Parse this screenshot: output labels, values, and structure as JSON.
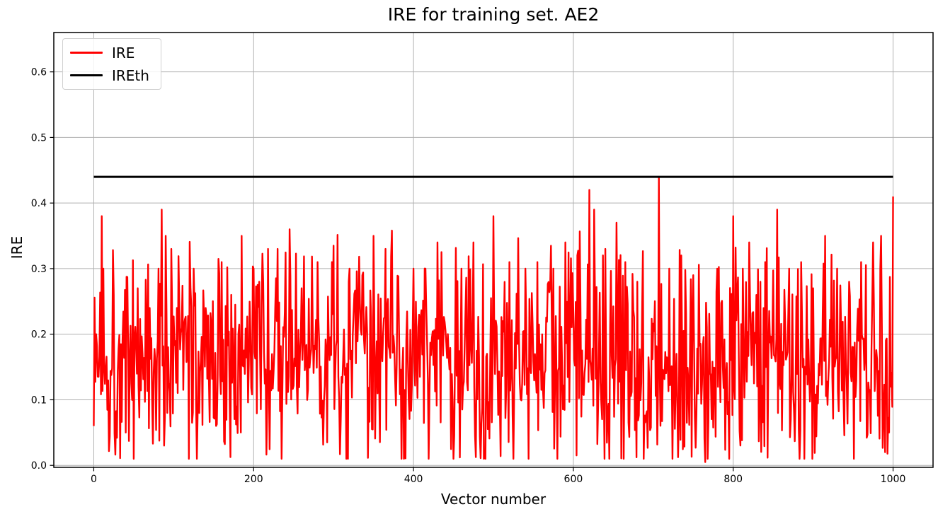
{
  "figure": {
    "background": "#ffffff"
  },
  "chart_data": {
    "type": "line",
    "title": "IRE for training set. AE2",
    "xlabel": "Vector number",
    "ylabel": "IRE",
    "xlim": [
      -50,
      1050
    ],
    "ylim": [
      -0.003,
      0.66
    ],
    "xticks": [
      0,
      200,
      400,
      600,
      800,
      1000
    ],
    "xtick_labels": [
      "0",
      "200",
      "400",
      "600",
      "800",
      "1000"
    ],
    "yticks": [
      0.0,
      0.1,
      0.2,
      0.3,
      0.4,
      0.5,
      0.6
    ],
    "ytick_labels": [
      "0.0",
      "0.1",
      "0.2",
      "0.3",
      "0.4",
      "0.5",
      "0.6"
    ],
    "grid": true,
    "grid_color": "#b0b0b0",
    "axis_color": "#000000",
    "legend": {
      "position": "upper-left",
      "entries": [
        {
          "label": "IRE",
          "color": "#ff0000"
        },
        {
          "label": "IREth",
          "color": "#000000"
        }
      ]
    },
    "series": [
      {
        "name": "IRE",
        "color": "#ff0000",
        "line_width": 2.4,
        "x_start": 0,
        "x_end": 1000,
        "n_points": 1001,
        "noise": {
          "seed": 1337,
          "center": 0.165,
          "spread": 0.2,
          "min": 0.01,
          "max": 0.385
        },
        "keypoints": [
          [
            0,
            0.06
          ],
          [
            3,
            0.2
          ],
          [
            10,
            0.38
          ],
          [
            12,
            0.3
          ],
          [
            25,
            0.26
          ],
          [
            40,
            0.05
          ],
          [
            55,
            0.27
          ],
          [
            70,
            0.24
          ],
          [
            85,
            0.39
          ],
          [
            90,
            0.35
          ],
          [
            97,
            0.33
          ],
          [
            110,
            0.21
          ],
          [
            125,
            0.3
          ],
          [
            140,
            0.24
          ],
          [
            160,
            0.31
          ],
          [
            172,
            0.26
          ],
          [
            185,
            0.35
          ],
          [
            200,
            0.3
          ],
          [
            218,
            0.33
          ],
          [
            230,
            0.33
          ],
          [
            245,
            0.36
          ],
          [
            260,
            0.27
          ],
          [
            280,
            0.31
          ],
          [
            298,
            0.31
          ],
          [
            320,
            0.3
          ],
          [
            336,
            0.29
          ],
          [
            350,
            0.35
          ],
          [
            365,
            0.33
          ],
          [
            385,
            0.01
          ],
          [
            400,
            0.3
          ],
          [
            415,
            0.3
          ],
          [
            430,
            0.34
          ],
          [
            450,
            0.01
          ],
          [
            460,
            0.3
          ],
          [
            475,
            0.34
          ],
          [
            500,
            0.38
          ],
          [
            520,
            0.31
          ],
          [
            540,
            0.3
          ],
          [
            555,
            0.31
          ],
          [
            575,
            0.3
          ],
          [
            590,
            0.34
          ],
          [
            605,
            0.32
          ],
          [
            620,
            0.42
          ],
          [
            626,
            0.39
          ],
          [
            640,
            0.33
          ],
          [
            654,
            0.37
          ],
          [
            665,
            0.31
          ],
          [
            680,
            0.28
          ],
          [
            695,
            0.13
          ],
          [
            707,
            0.44
          ],
          [
            720,
            0.3
          ],
          [
            735,
            0.32
          ],
          [
            750,
            0.29
          ],
          [
            765,
            0.005
          ],
          [
            780,
            0.3
          ],
          [
            800,
            0.38
          ],
          [
            812,
            0.3
          ],
          [
            820,
            0.34
          ],
          [
            840,
            0.31
          ],
          [
            855,
            0.39
          ],
          [
            870,
            0.3
          ],
          [
            885,
            0.31
          ],
          [
            900,
            0.27
          ],
          [
            915,
            0.35
          ],
          [
            930,
            0.3
          ],
          [
            945,
            0.28
          ],
          [
            960,
            0.31
          ],
          [
            975,
            0.34
          ],
          [
            985,
            0.35
          ],
          [
            990,
            0.02
          ],
          [
            995,
            0.05
          ],
          [
            997,
            0.12
          ],
          [
            1000,
            0.41
          ]
        ]
      },
      {
        "name": "IREth",
        "color": "#000000",
        "line_width": 3,
        "x_start": 0,
        "x_end": 1000,
        "constant": 0.44
      }
    ]
  }
}
